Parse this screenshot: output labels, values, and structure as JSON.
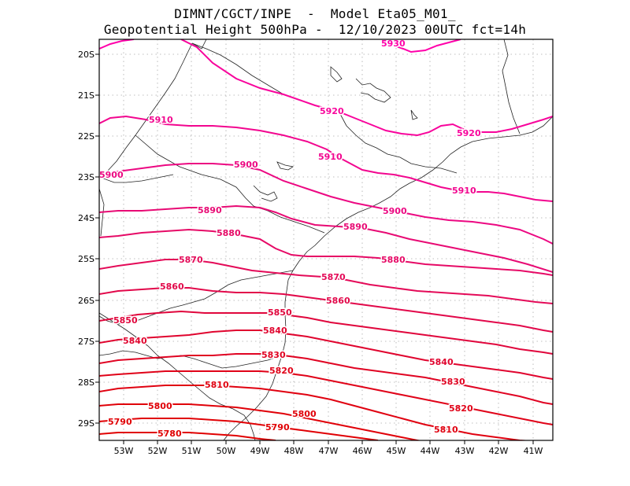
{
  "title_line1": "DIMNT/CGCT/INPE  -  Model Eta05_M01_",
  "title_line2": "Geopotential Height 500hPa -  12/10/2023 00UTC fct=14h",
  "axes": {
    "lon_ticks": [
      "53W",
      "52W",
      "51W",
      "50W",
      "49W",
      "48W",
      "47W",
      "46W",
      "45W",
      "44W",
      "43W",
      "42W",
      "41W"
    ],
    "lat_ticks": [
      "20S",
      "21S",
      "22S",
      "23S",
      "24S",
      "25S",
      "26S",
      "27S",
      "28S",
      "29S"
    ]
  },
  "contours": [
    {
      "value": "5930",
      "color": "#ff00aa"
    },
    {
      "value": "5920",
      "color": "#f8049c"
    },
    {
      "value": "5910",
      "color": "#f2068f"
    },
    {
      "value": "5900",
      "color": "#ec0882"
    },
    {
      "value": "5890",
      "color": "#e80a74"
    },
    {
      "value": "5880",
      "color": "#e60a66"
    },
    {
      "value": "5870",
      "color": "#e40a58"
    },
    {
      "value": "5860",
      "color": "#e2084a"
    },
    {
      "value": "5850",
      "color": "#e0063c"
    },
    {
      "value": "5840",
      "color": "#e0042e"
    },
    {
      "value": "5830",
      "color": "#e00322"
    },
    {
      "value": "5820",
      "color": "#e00218"
    },
    {
      "value": "5810",
      "color": "#e00110"
    },
    {
      "value": "5800",
      "color": "#e00008"
    },
    {
      "value": "5790",
      "color": "#e00004"
    },
    {
      "value": "5780",
      "color": "#e00000"
    }
  ]
}
